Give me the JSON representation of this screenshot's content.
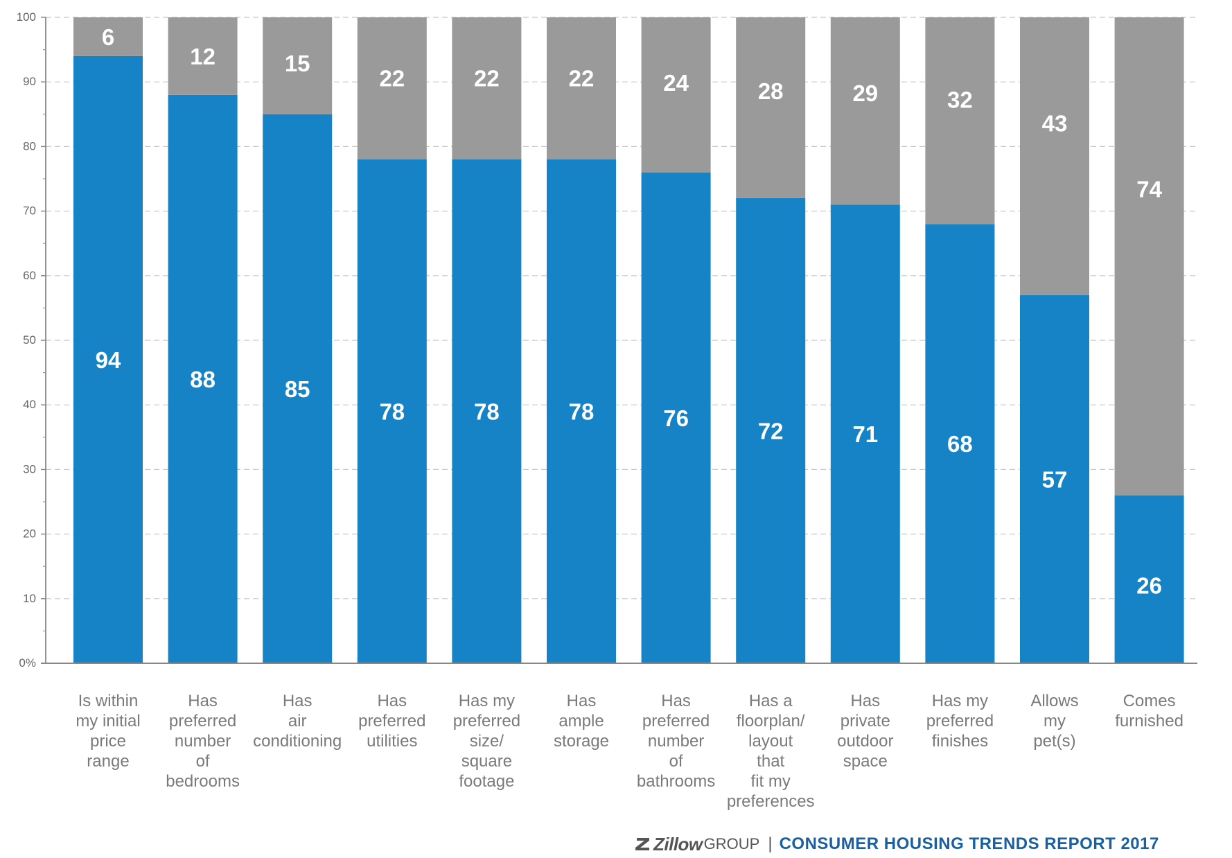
{
  "chart_data": {
    "type": "bar",
    "stacked": true,
    "title": "",
    "xlabel": "",
    "ylabel": "",
    "ylim": [
      0,
      100
    ],
    "yticks": [
      "0%",
      "10",
      "20",
      "30",
      "40",
      "50",
      "60",
      "70",
      "80",
      "90",
      "100"
    ],
    "grid": true,
    "categories": [
      [
        "Is within",
        "my initial",
        "price",
        "range"
      ],
      [
        "Has",
        "preferred",
        "number",
        "of",
        "bedrooms"
      ],
      [
        "Has",
        "air",
        "conditioning"
      ],
      [
        "Has",
        "preferred",
        "utilities"
      ],
      [
        "Has my",
        "preferred",
        "size/",
        "square",
        "footage"
      ],
      [
        "Has",
        "ample",
        "storage"
      ],
      [
        "Has",
        "preferred",
        "number",
        "of",
        "bathrooms"
      ],
      [
        "Has a",
        "floorplan/",
        "layout",
        "that",
        "fit my",
        "preferences"
      ],
      [
        "Has",
        "private",
        "outdoor",
        "space"
      ],
      [
        "Has my",
        "preferred",
        "finishes"
      ],
      [
        "Allows",
        "my",
        "pet(s)"
      ],
      [
        "Comes",
        "furnished"
      ]
    ],
    "series": [
      {
        "color": "#1683c6",
        "values": [
          94,
          88,
          85,
          78,
          78,
          78,
          76,
          72,
          71,
          68,
          57,
          26
        ]
      },
      {
        "color": "#9a9a9a",
        "values": [
          6,
          12,
          15,
          22,
          22,
          22,
          24,
          28,
          29,
          32,
          43,
          74
        ]
      }
    ]
  },
  "footer": {
    "brand": "Zillow",
    "brand_sub": "GROUP",
    "separator": "|",
    "report": "CONSUMER HOUSING TRENDS REPORT 2017"
  },
  "colors": {
    "primary": "#1683c6",
    "secondary": "#9a9a9a",
    "report_text": "#1a5f9e"
  }
}
